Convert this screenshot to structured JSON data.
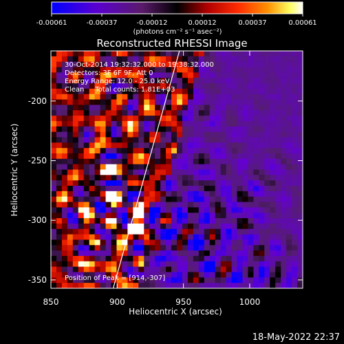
{
  "chart_data": {
    "type": "heatmap",
    "title": "Reconstructed RHESSI Image",
    "xlabel": "Heliocentric X (arcsec)",
    "ylabel": "Heliocentric Y (arcsec)",
    "xlim": [
      850,
      1040
    ],
    "ylim": [
      -357,
      -158
    ],
    "x_ticks": [
      "850",
      "900",
      "950",
      "1000"
    ],
    "x_tick_values": [
      850,
      900,
      950,
      1000
    ],
    "y_ticks": [
      "-200",
      "-250",
      "-300",
      "-350"
    ],
    "y_tick_values": [
      -200,
      -250,
      -300,
      -350
    ],
    "colorbar": {
      "ticks": [
        "-0.00061",
        "-0.00037",
        "-0.00012",
        "0.00012",
        "0.00037",
        "0.00061"
      ],
      "range": [
        -0.00061,
        0.00061
      ],
      "unit_label": "(photons cm⁻² s⁻¹ asec⁻²)",
      "colors": [
        "#0000ff",
        "#6a00c0",
        "#5a1a7a",
        "#000000",
        "#a00000",
        "#ff2000",
        "#ff8000",
        "#ffff60",
        "#ffffff"
      ]
    },
    "annotations": [
      "30-Oct-2014 19:32:32.000 to 19:38:32.000",
      "Detectors: 3F 6F 9F, Att 0",
      "Energy Range: 12.0 - 25.0 keV",
      "Clean     Total counts: 1.81E+03"
    ],
    "peak_label": "Position of Peak = [914,-307]",
    "peak": [
      914,
      -307
    ],
    "limb_line": [
      [
        897,
        -357
      ],
      [
        947,
        -158
      ]
    ],
    "grid": false
  },
  "footer": {
    "date": "18-May-2022 22:37"
  }
}
